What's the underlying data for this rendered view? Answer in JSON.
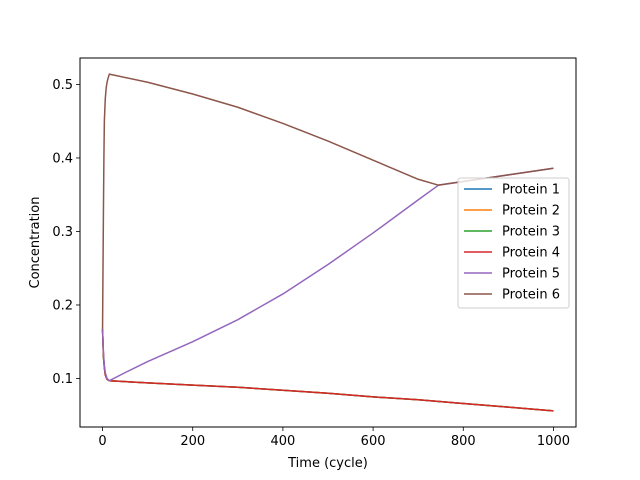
{
  "chart_data": {
    "type": "line",
    "title": "",
    "xlabel": "Time (cycle)",
    "ylabel": "Concentration",
    "xlim": [
      -50,
      1050
    ],
    "ylim": [
      0.034,
      0.536
    ],
    "xticks": [
      0,
      200,
      400,
      600,
      800,
      1000
    ],
    "yticks": [
      0.1,
      0.2,
      0.3,
      0.4,
      0.5
    ],
    "xtick_labels": [
      "0",
      "200",
      "400",
      "600",
      "800",
      "1000"
    ],
    "ytick_labels": [
      "0.1",
      "0.2",
      "0.3",
      "0.4",
      "0.5"
    ],
    "grid": false,
    "legend_position": "center-right",
    "series": [
      {
        "name": "Protein 1",
        "color": "#1f77b4",
        "x": [
          0,
          2,
          4,
          6,
          10,
          15,
          100,
          200,
          300,
          400,
          500,
          600,
          700,
          800,
          900,
          1000
        ],
        "y": [
          0.167,
          0.13,
          0.115,
          0.105,
          0.099,
          0.097,
          0.094,
          0.091,
          0.088,
          0.084,
          0.08,
          0.075,
          0.071,
          0.066,
          0.061,
          0.056
        ]
      },
      {
        "name": "Protein 2",
        "color": "#ff7f0e",
        "x": [
          0,
          2,
          4,
          6,
          10,
          15,
          100,
          200,
          300,
          400,
          500,
          600,
          700,
          800,
          900,
          1000
        ],
        "y": [
          0.167,
          0.13,
          0.115,
          0.105,
          0.099,
          0.097,
          0.094,
          0.091,
          0.088,
          0.084,
          0.08,
          0.075,
          0.071,
          0.066,
          0.061,
          0.056
        ]
      },
      {
        "name": "Protein 3",
        "color": "#2ca02c",
        "x": [
          0,
          2,
          4,
          6,
          10,
          15,
          100,
          200,
          300,
          400,
          500,
          600,
          700,
          800,
          900,
          1000
        ],
        "y": [
          0.167,
          0.13,
          0.115,
          0.105,
          0.099,
          0.097,
          0.094,
          0.091,
          0.088,
          0.084,
          0.08,
          0.075,
          0.071,
          0.066,
          0.061,
          0.056
        ]
      },
      {
        "name": "Protein 4",
        "color": "#d62728",
        "x": [
          0,
          2,
          4,
          6,
          10,
          15,
          100,
          200,
          300,
          400,
          500,
          600,
          700,
          800,
          900,
          1000
        ],
        "y": [
          0.167,
          0.13,
          0.115,
          0.105,
          0.099,
          0.097,
          0.094,
          0.091,
          0.088,
          0.084,
          0.08,
          0.075,
          0.071,
          0.066,
          0.061,
          0.056
        ]
      },
      {
        "name": "Protein 5",
        "color": "#9467bd",
        "x": [
          0,
          2,
          4,
          6,
          10,
          15,
          50,
          100,
          200,
          300,
          400,
          500,
          600,
          700,
          745,
          800,
          900,
          1000
        ],
        "y": [
          0.167,
          0.135,
          0.118,
          0.108,
          0.1,
          0.097,
          0.108,
          0.123,
          0.15,
          0.18,
          0.215,
          0.255,
          0.298,
          0.343,
          0.363,
          0.368,
          0.377,
          0.386
        ]
      },
      {
        "name": "Protein 6",
        "color": "#8c564b",
        "x": [
          0,
          1,
          2,
          3,
          4,
          6,
          8,
          10,
          12,
          15,
          100,
          200,
          300,
          400,
          500,
          600,
          700,
          745,
          800,
          900,
          1000
        ],
        "y": [
          0.167,
          0.25,
          0.33,
          0.4,
          0.45,
          0.48,
          0.495,
          0.503,
          0.508,
          0.514,
          0.503,
          0.487,
          0.469,
          0.447,
          0.423,
          0.397,
          0.371,
          0.363,
          0.368,
          0.377,
          0.386
        ]
      }
    ]
  }
}
